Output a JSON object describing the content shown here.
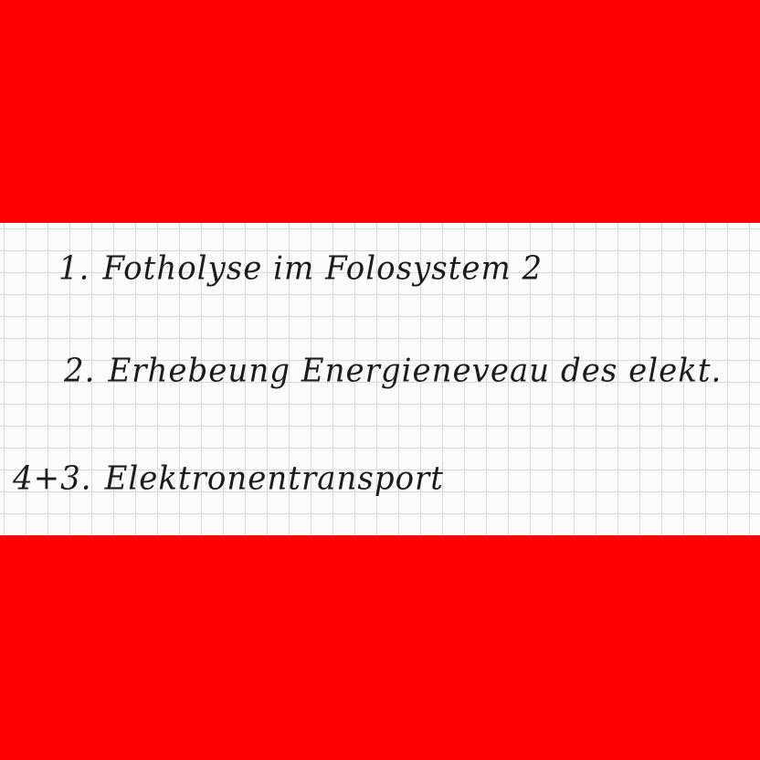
{
  "colors": {
    "band": "#ff0000",
    "paper": "#fbfbfb",
    "grid": "#d8d8d8",
    "ink": "#1c1c1c"
  },
  "notes": [
    {
      "number": "1.",
      "text": "Fotholyse im Folosystem 2"
    },
    {
      "number": "2.",
      "text": "Erhebeung Energieneveau des elekt."
    },
    {
      "number": "4+3.",
      "text": "Elektronentransport"
    }
  ]
}
